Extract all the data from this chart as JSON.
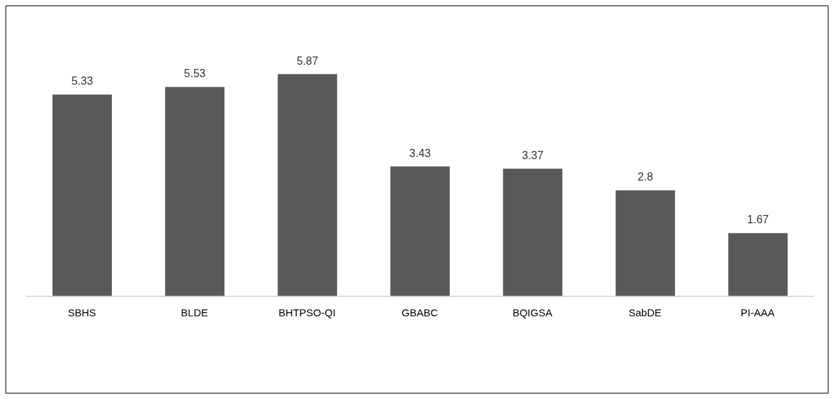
{
  "chart_data": {
    "type": "bar",
    "categories": [
      "SBHS",
      "BLDE",
      "BHTPSO-QI",
      "GBABC",
      "BQIGSA",
      "SabDE",
      "PI-AAA"
    ],
    "values": [
      5.33,
      5.53,
      5.87,
      3.43,
      3.37,
      2.8,
      1.67
    ],
    "color": "#595959",
    "data_labels": true,
    "tick_labels": "x"
  }
}
